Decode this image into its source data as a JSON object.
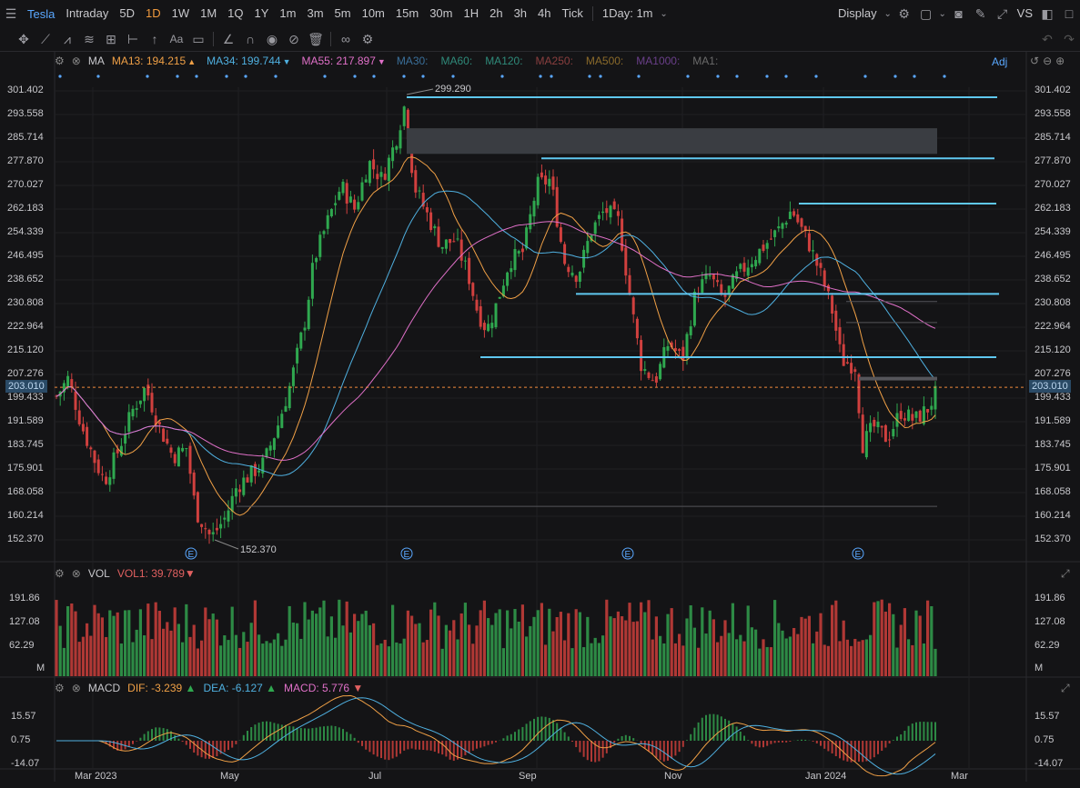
{
  "toolbar": {
    "ticker": "Tesla",
    "timeframes": [
      "Intraday",
      "5D",
      "1D",
      "1W",
      "1M",
      "1Q",
      "1Y",
      "1m",
      "3m",
      "5m",
      "10m",
      "15m",
      "30m",
      "1H",
      "2h",
      "3h",
      "4h",
      "Tick"
    ],
    "active_timeframe": "1D",
    "interval_select": "1Day: 1m",
    "display_label": "Display",
    "vs_label": "VS"
  },
  "drawing_tools": [
    "crosshair-icon",
    "line-tool-icon",
    "pattern-tool-icon",
    "fib-tool-icon",
    "ruler-icon",
    "range-icon",
    "arrow-icon",
    "text-tool-icon",
    "note-icon",
    "pen-icon",
    "magnet-icon",
    "eye-icon",
    "hide-icon",
    "trash-icon",
    "link-icon",
    "settings-icon"
  ],
  "ma_legend": {
    "label": "MA",
    "items": [
      {
        "text": "MA13: 194.215",
        "arrow": "▲",
        "color": "#f0a046"
      },
      {
        "text": "MA34: 199.744",
        "arrow": "▼",
        "color": "#4fb0e0"
      },
      {
        "text": "MA55: 217.897",
        "arrow": "▼",
        "color": "#e070c8"
      },
      {
        "text": "MA30:",
        "arrow": "",
        "color": "#3a6f9a"
      },
      {
        "text": "MA60:",
        "arrow": "",
        "color": "#2f8a7a"
      },
      {
        "text": "MA120:",
        "arrow": "",
        "color": "#2f8a7a"
      },
      {
        "text": "MA250:",
        "arrow": "",
        "color": "#8a3f3f"
      },
      {
        "text": "MA500:",
        "arrow": "",
        "color": "#8a6a2a"
      },
      {
        "text": "MA1000:",
        "arrow": "",
        "color": "#6a3f8a"
      },
      {
        "text": "MA1:",
        "arrow": "",
        "color": "#6a6a6a"
      }
    ],
    "adj_label": "Adj"
  },
  "price_axis": [
    "301.402",
    "293.558",
    "285.714",
    "277.870",
    "270.027",
    "262.183",
    "254.339",
    "246.495",
    "238.652",
    "230.808",
    "222.964",
    "215.120",
    "207.276",
    "199.433",
    "191.589",
    "183.745",
    "175.901",
    "168.058",
    "160.214",
    "152.370"
  ],
  "last_price": "203.010",
  "annotations": {
    "high": "299.290",
    "low": "152.370",
    "earnings_marker": "E"
  },
  "vol_legend": {
    "label": "VOL",
    "vol1": "VOL1: 39.789",
    "arrow": "▼"
  },
  "vol_axis": [
    "191.86",
    "127.08",
    "62.29",
    "M"
  ],
  "macd_legend": {
    "label": "MACD",
    "dif": "DIF: -3.239",
    "dif_arrow": "▲",
    "dea": "DEA: -6.127",
    "dea_arrow": "▲",
    "macd": "MACD: 5.776",
    "macd_arrow": "▼"
  },
  "macd_axis": [
    "15.57",
    "0.75",
    "-14.07"
  ],
  "x_axis": [
    "Mar 2023",
    "May",
    "Jul",
    "Sep",
    "Nov",
    "Jan 2024",
    "Mar"
  ],
  "colors": {
    "up": "#2fa84f",
    "down": "#d0403e",
    "ma13": "#f0a046",
    "ma34": "#4fb0e0",
    "ma55": "#e070c8",
    "level": "#5fc8f0",
    "dif": "#f0a046",
    "dea": "#4fb0e0"
  },
  "chart_data": {
    "type": "candlestick",
    "ylim": [
      152.37,
      301.402
    ],
    "key_levels": [
      299.29,
      279.0,
      264.0,
      234.0,
      213.0
    ],
    "ma13_end": 194.215,
    "ma34_end": 199.744,
    "ma55_end": 217.897,
    "vol_end": 39.789,
    "macd_end": {
      "dif": -3.239,
      "dea": -6.127,
      "macd": 5.776
    }
  }
}
